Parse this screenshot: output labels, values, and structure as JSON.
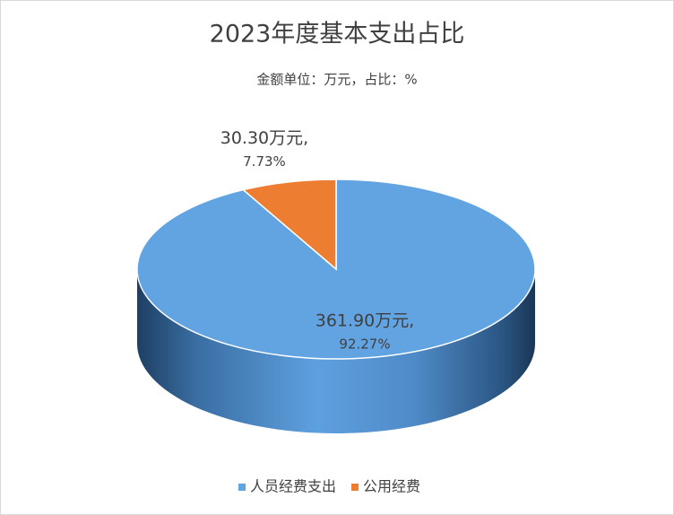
{
  "chart_data": {
    "type": "pie3d",
    "title": "2023年度基本支出占比",
    "subtitle": "金额单位：万元，占比：%",
    "categories": [
      "人员经费支出",
      "公用经费"
    ],
    "values": [
      361.9,
      30.3
    ],
    "value_labels": [
      "361.90万元,",
      "30.30万元,"
    ],
    "percent_labels": [
      "92.27%",
      "7.73%"
    ],
    "colors": [
      "#62a3e2",
      "#ed7d31"
    ],
    "legend": "bottom"
  }
}
